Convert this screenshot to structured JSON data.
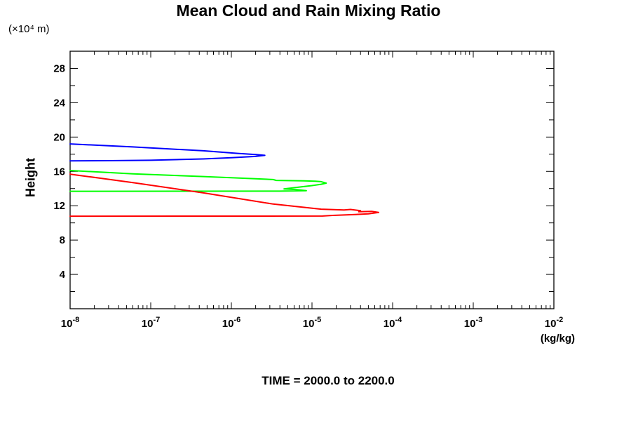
{
  "page": {
    "title": "Mean Cloud and Rain Mixing Ratio",
    "caption": "TIME = 2000.0 to 2200.0"
  },
  "y_axis": {
    "unit_label": "(×10⁴ m)",
    "title": "Height",
    "range": [
      0,
      30
    ],
    "major_ticks": [
      4,
      8,
      12,
      16,
      20,
      24,
      28
    ],
    "minor_ticks": [
      2,
      6,
      10,
      14,
      18,
      22,
      26
    ]
  },
  "x_axis": {
    "unit_label": "(kg/kg)",
    "scale": "log",
    "base": "10",
    "decade_exponents": [
      -8,
      -7,
      -6,
      -5,
      -4,
      -3,
      -2
    ],
    "range_exponents": [
      -8,
      -2
    ]
  },
  "chart_data": {
    "type": "line",
    "title": "Mean Cloud and Rain Mixing Ratio",
    "caption": "TIME = 2000.0 to 2200.0",
    "xlabel": "(kg/kg)",
    "ylabel": "Height (×10⁴ m)",
    "x_scale": "log",
    "xlim": [
      1e-08,
      0.01
    ],
    "ylim": [
      0,
      30
    ],
    "grid": false,
    "legend": "none",
    "frame": "box-with-inward-ticks",
    "series": [
      {
        "name": "blue-profile",
        "color": "#0000ff",
        "points": [
          [
            1e-08,
            19.2
          ],
          [
            6e-08,
            18.85
          ],
          [
            4.5e-07,
            18.4
          ],
          [
            1.2e-06,
            18.1
          ],
          [
            2e-06,
            17.97
          ],
          [
            2.6e-06,
            17.87
          ],
          [
            2e-06,
            17.75
          ],
          [
            1e-06,
            17.6
          ],
          [
            4.5e-07,
            17.45
          ],
          [
            1e-07,
            17.3
          ],
          [
            3e-08,
            17.25
          ],
          [
            1e-08,
            17.23
          ]
        ]
      },
      {
        "name": "green-profile",
        "color": "#00ff00",
        "points": [
          [
            1e-08,
            16.1
          ],
          [
            6e-08,
            15.72
          ],
          [
            4.5e-07,
            15.4
          ],
          [
            2e-06,
            15.15
          ],
          [
            3.3e-06,
            15.05
          ],
          [
            3.6e-06,
            14.95
          ],
          [
            8e-06,
            14.9
          ],
          [
            1.1e-05,
            14.85
          ],
          [
            1.3e-05,
            14.8
          ],
          [
            1.5e-05,
            14.63
          ],
          [
            1.3e-05,
            14.5
          ],
          [
            1e-05,
            14.35
          ],
          [
            6e-06,
            14.1
          ],
          [
            4.5e-06,
            13.95
          ],
          [
            6.5e-06,
            13.88
          ],
          [
            8.5e-06,
            13.75
          ],
          [
            4e-06,
            13.7
          ],
          [
            1e-08,
            13.68
          ]
        ]
      },
      {
        "name": "red-profile",
        "color": "#ff0000",
        "points": [
          [
            1e-08,
            15.68
          ],
          [
            6e-08,
            14.7
          ],
          [
            4.5e-07,
            13.5
          ],
          [
            3.3e-06,
            12.2
          ],
          [
            1.3e-05,
            11.6
          ],
          [
            2.5e-05,
            11.5
          ],
          [
            3e-05,
            11.57
          ],
          [
            4e-05,
            11.42
          ],
          [
            3.8e-05,
            11.3
          ],
          [
            5.5e-05,
            11.35
          ],
          [
            6.7e-05,
            11.22
          ],
          [
            5e-05,
            11.05
          ],
          [
            3e-05,
            10.95
          ],
          [
            1.8e-05,
            10.87
          ],
          [
            1.35e-05,
            10.8
          ],
          [
            1e-08,
            10.78
          ]
        ]
      }
    ]
  }
}
